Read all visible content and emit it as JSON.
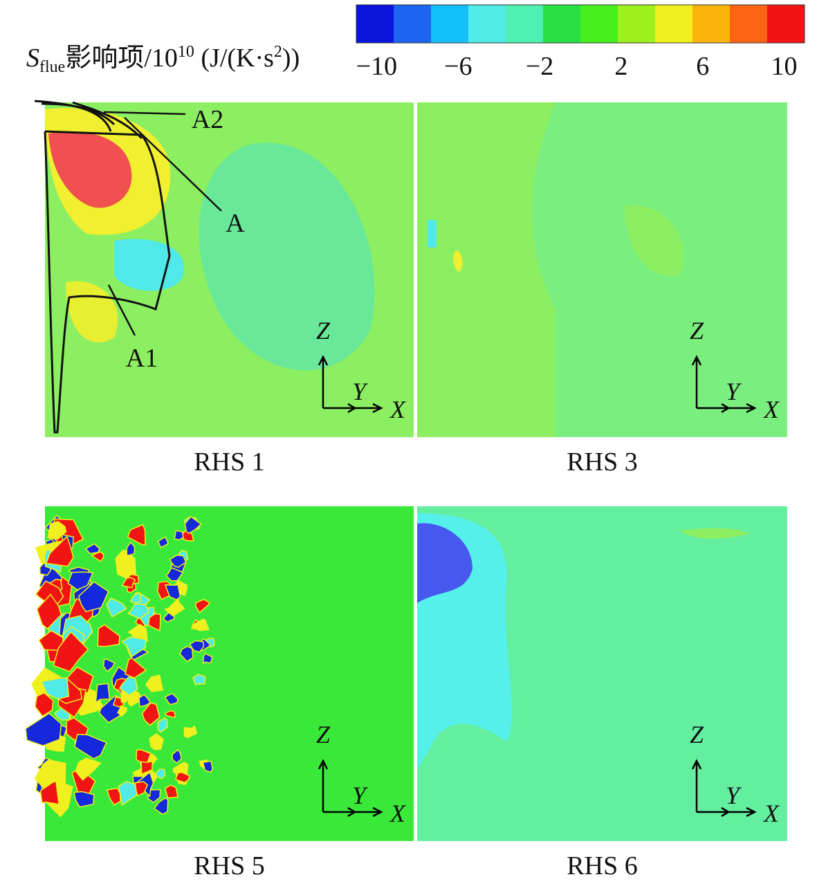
{
  "colorbar": {
    "label": {
      "symbol": "S",
      "subscript": "flue",
      "text": "影响项/10",
      "exponent": "10",
      "unit": "(J/(K·s",
      "unit_exponent": "2",
      "unit_end": "))"
    },
    "range": [
      -11,
      11
    ],
    "colors": [
      "#0a14dc",
      "#1e64f0",
      "#14c0fa",
      "#50ebe6",
      "#50f0b4",
      "#28e046",
      "#46f01e",
      "#9cf01e",
      "#f0f01e",
      "#fab40a",
      "#fa6414",
      "#f01414"
    ],
    "ticks": [
      {
        "value": -10,
        "label": "−10"
      },
      {
        "value": -6,
        "label": "−6"
      },
      {
        "value": -2,
        "label": "−2"
      },
      {
        "value": 2,
        "label": "2"
      },
      {
        "value": 6,
        "label": "6"
      },
      {
        "value": 10,
        "label": "10"
      }
    ]
  },
  "panels": [
    {
      "label": "RHS 1",
      "axes": {
        "z": "Z",
        "y": "Y",
        "x": "X"
      },
      "annotations": [
        "A2",
        "A",
        "A1"
      ]
    },
    {
      "label": "RHS 3",
      "axes": {
        "z": "Z",
        "y": "Y",
        "x": "X"
      }
    },
    {
      "label": "RHS 5",
      "axes": {
        "z": "Z",
        "y": "Y",
        "x": "X"
      }
    },
    {
      "label": "RHS 6",
      "axes": {
        "z": "Z",
        "y": "Y",
        "x": "X"
      }
    }
  ]
}
